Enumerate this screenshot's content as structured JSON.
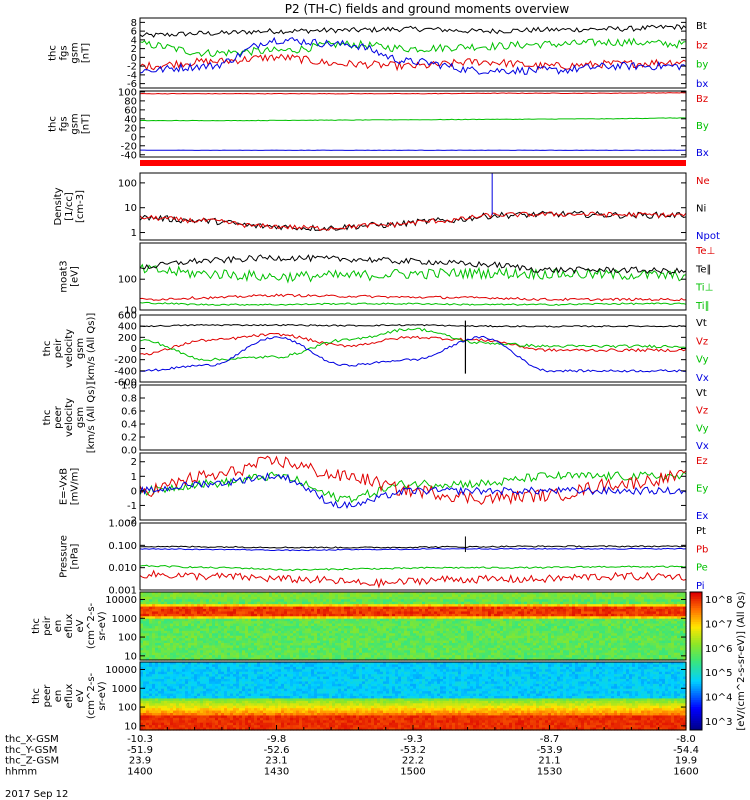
{
  "title": "P2 (TH-C) fields and ground moments overview",
  "panels": [
    {
      "id": "b-dsl",
      "ylabel": [
        "thc",
        "fgs",
        "gsm",
        "[nT]"
      ],
      "yticks": [
        "8",
        "6",
        "4",
        "2",
        "0",
        "-2",
        "-4",
        "-6"
      ],
      "ylim": [
        -7,
        9
      ],
      "legend": [
        {
          "text": "Bt",
          "color": "#000000"
        },
        {
          "text": "bz",
          "color": "#e00000"
        },
        {
          "text": "by",
          "color": "#00c000"
        },
        {
          "text": "bx",
          "color": "#0000e0"
        }
      ]
    },
    {
      "id": "b-gsm",
      "ylabel": [
        "thc",
        "fgs",
        "gsm",
        "[nT]"
      ],
      "yticks": [
        "100",
        "80",
        "60",
        "40",
        "20",
        "0",
        "-20",
        "-40"
      ],
      "ylim": [
        -45,
        102
      ],
      "legend": [
        {
          "text": "Bz",
          "color": "#e00000"
        },
        {
          "text": "By",
          "color": "#00c000"
        },
        {
          "text": "Bx",
          "color": "#0000e0"
        }
      ]
    },
    {
      "id": "density",
      "ylabel": [
        "Density",
        "[1/cc]",
        "[cm-3]"
      ],
      "yticks": [
        "100",
        "10",
        "1"
      ],
      "ylim": [
        0.5,
        250
      ],
      "log": true,
      "legend": [
        {
          "text": "Ne",
          "color": "#e00000"
        },
        {
          "text": "Ni",
          "color": "#000000"
        },
        {
          "text": "Npot",
          "color": "#0000e0"
        }
      ]
    },
    {
      "id": "temperature",
      "ylabel": [
        "moat3",
        "[eV]"
      ],
      "yticks": [
        "100",
        "10"
      ],
      "ylim": [
        10,
        1500
      ],
      "log": true,
      "legend": [
        {
          "text": "Te⊥",
          "color": "#e00000"
        },
        {
          "text": "Te∥",
          "color": "#000000"
        },
        {
          "text": "Ti⊥",
          "color": "#00c000"
        },
        {
          "text": "Ti∥",
          "color": "#00c000"
        }
      ]
    },
    {
      "id": "velocity-ion",
      "ylabel": [
        "thc",
        "peir",
        "velocity",
        "gsm",
        "[km/s (All Qs)]"
      ],
      "yticks": [
        "600",
        "400",
        "200",
        "0",
        "-200",
        "-400",
        "-600"
      ],
      "ylim": [
        -600,
        600
      ],
      "legend": [
        {
          "text": "Vt",
          "color": "#000000"
        },
        {
          "text": "Vz",
          "color": "#e00000"
        },
        {
          "text": "Vy",
          "color": "#00c000"
        },
        {
          "text": "Vx",
          "color": "#0000e0"
        }
      ]
    },
    {
      "id": "velocity-electron",
      "ylabel": [
        "thc",
        "peer",
        "velocity",
        "gsm",
        "[km/s (All Qs)]"
      ],
      "yticks": [
        "1.0",
        "0.8",
        "0.6",
        "0.4",
        "0.2",
        "0.0"
      ],
      "ylim": [
        0,
        1
      ],
      "legend": [
        {
          "text": "Vt",
          "color": "#000000"
        },
        {
          "text": "Vz",
          "color": "#e00000"
        },
        {
          "text": "Vy",
          "color": "#00c000"
        },
        {
          "text": "Vx",
          "color": "#0000e0"
        }
      ]
    },
    {
      "id": "efield",
      "ylabel": [
        "E=-VxB",
        "[mV/m]"
      ],
      "yticks": [
        "2",
        "1",
        "0",
        "-1",
        "-2"
      ],
      "ylim": [
        -2,
        2.6
      ],
      "legend": [
        {
          "text": "Ez",
          "color": "#e00000"
        },
        {
          "text": "Ey",
          "color": "#00c000"
        },
        {
          "text": "Ex",
          "color": "#0000e0"
        }
      ]
    },
    {
      "id": "pressure",
      "ylabel": [
        "Pressure",
        "[nPa]"
      ],
      "yticks": [
        "1.000",
        "0.100",
        "0.010",
        "0.001"
      ],
      "ylim": [
        0.001,
        1.0
      ],
      "log": true,
      "legend": [
        {
          "text": "Pt",
          "color": "#000000"
        },
        {
          "text": "Pb",
          "color": "#e00000"
        },
        {
          "text": "Pe",
          "color": "#00c000"
        },
        {
          "text": "Pi",
          "color": "#0000e0"
        }
      ]
    },
    {
      "id": "ion-spectrogram",
      "ylabel": [
        "thc",
        "peir",
        "en",
        "eflux",
        "eV",
        "(cm^2-s-",
        "sr-eV)"
      ],
      "yticks": [
        "10000",
        "1000",
        "100",
        "10"
      ]
    },
    {
      "id": "electron-spectrogram",
      "ylabel": [
        "thc",
        "peer",
        "en",
        "eflux",
        "eV",
        "(cm^2-s-",
        "sr-eV)"
      ],
      "yticks": [
        "10000",
        "1000",
        "100",
        "10"
      ]
    }
  ],
  "colorbar": {
    "label": "[eV/(cm^2-s-sr-eV)] (All Qs)",
    "ticks": [
      "10^8",
      "10^7",
      "10^6",
      "10^5",
      "10^4",
      "10^3"
    ]
  },
  "xaxis": {
    "rows": [
      {
        "label": "thc_X-GSM",
        "values": [
          "-10.3",
          "-9.8",
          "-9.3",
          "-8.7",
          "-8.0"
        ]
      },
      {
        "label": "thc_Y-GSM",
        "values": [
          "-51.9",
          "-52.6",
          "-53.2",
          "-53.9",
          "-54.4"
        ]
      },
      {
        "label": "thc_Z-GSM",
        "values": [
          "23.9",
          "23.1",
          "22.2",
          "21.1",
          "19.9"
        ]
      },
      {
        "label": "hhmm",
        "values": [
          "1400",
          "1430",
          "1500",
          "1530",
          "1600"
        ]
      }
    ],
    "date": "2017 Sep 12"
  },
  "chart_data": {
    "type": "line",
    "title": "P2 (TH-C) fields and ground moments overview",
    "x": [
      "1400",
      "1430",
      "1500",
      "1530",
      "1600"
    ],
    "series": [
      {
        "name": "Bt",
        "values": [
          5,
          5.5,
          6,
          6.5,
          7
        ]
      },
      {
        "name": "bz",
        "values": [
          -2,
          0,
          -2,
          -2,
          -1
        ]
      },
      {
        "name": "by",
        "values": [
          3,
          2,
          3,
          3,
          3
        ]
      },
      {
        "name": "bx",
        "values": [
          -3,
          4,
          -2,
          -3,
          -2
        ]
      },
      {
        "name": "Bz",
        "values": [
          96,
          96,
          96,
          97,
          98
        ]
      },
      {
        "name": "By",
        "values": [
          36,
          37,
          38,
          40,
          42
        ]
      },
      {
        "name": "Bx",
        "values": [
          -30,
          -30,
          -30,
          -30,
          -30
        ]
      },
      {
        "name": "Ne",
        "values": [
          4,
          1.5,
          2,
          5,
          5
        ]
      },
      {
        "name": "Ni",
        "values": [
          4,
          1.5,
          2,
          5,
          5
        ]
      },
      {
        "name": "Vt",
        "values": [
          400,
          420,
          420,
          390,
          400
        ]
      },
      {
        "name": "Vz",
        "values": [
          -100,
          250,
          200,
          -30,
          -30
        ]
      },
      {
        "name": "Vy",
        "values": [
          150,
          -200,
          350,
          40,
          40
        ]
      },
      {
        "name": "Vx",
        "values": [
          -400,
          200,
          -200,
          -400,
          -400
        ]
      },
      {
        "name": "Ez",
        "values": [
          0,
          2,
          0,
          -0.5,
          1
        ]
      },
      {
        "name": "Ey",
        "values": [
          0,
          -0.5,
          0.5,
          1,
          1
        ]
      },
      {
        "name": "Ex",
        "values": [
          0,
          1,
          -1,
          0,
          0
        ]
      },
      {
        "name": "Pt",
        "values": [
          0.09,
          0.08,
          0.08,
          0.09,
          0.09
        ]
      },
      {
        "name": "Pb",
        "values": [
          0.005,
          0.004,
          0.002,
          0.003,
          0.004
        ]
      },
      {
        "name": "Pe",
        "values": [
          0.01,
          0.008,
          0.008,
          0.01,
          0.01
        ]
      },
      {
        "name": "Pi",
        "values": [
          0.07,
          0.07,
          0.07,
          0.07,
          0.07
        ]
      }
    ]
  }
}
